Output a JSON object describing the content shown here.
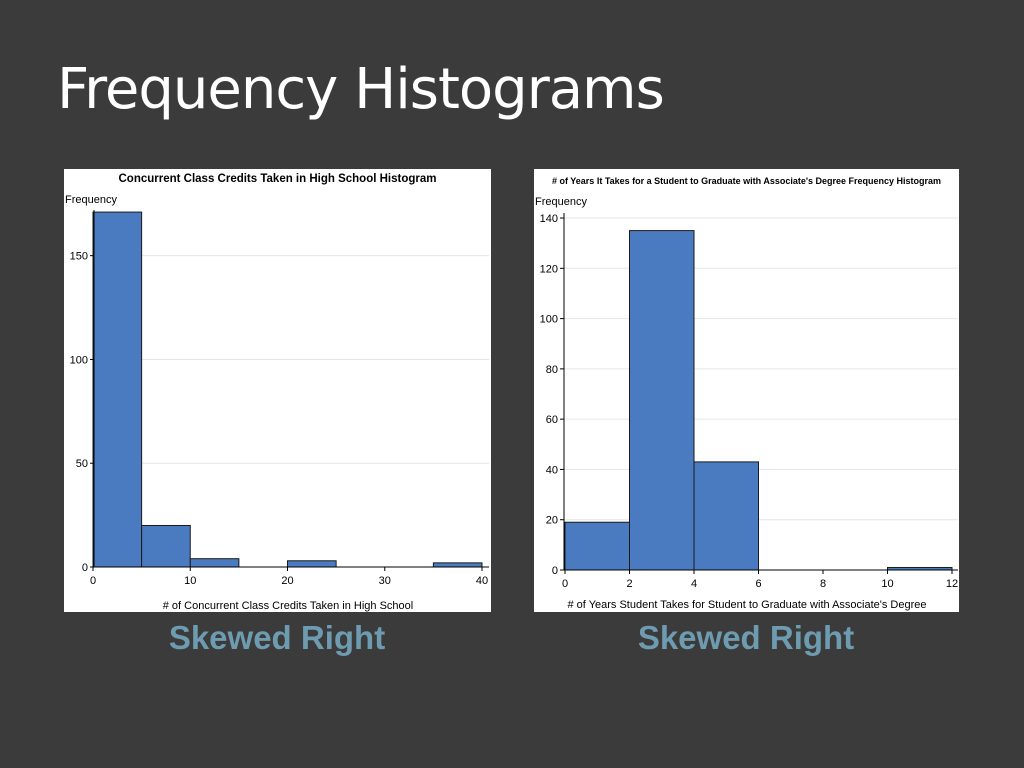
{
  "slide": {
    "title": "Frequency Histograms",
    "accent_color": "#6d9bb0",
    "background_color": "#3b3b3b"
  },
  "captions": {
    "left": "Skewed Right",
    "right": "Skewed Right"
  },
  "chart_data": [
    {
      "type": "bar",
      "title": "Concurrent Class Credits Taken in High School Histogram",
      "xlabel": "# of Concurrent Class Credits Taken in High School",
      "ylabel": "Frequency",
      "xlim": [
        0,
        40
      ],
      "ylim": [
        0,
        172
      ],
      "x_ticks": [
        0,
        10,
        20,
        30,
        40
      ],
      "y_ticks": [
        0,
        50,
        100,
        150
      ],
      "grid": true,
      "bar_color": "#4a7bc1",
      "bins": [
        {
          "start": 0,
          "end": 5,
          "count": 171
        },
        {
          "start": 5,
          "end": 10,
          "count": 20
        },
        {
          "start": 10,
          "end": 15,
          "count": 4
        },
        {
          "start": 20,
          "end": 25,
          "count": 3
        },
        {
          "start": 35,
          "end": 40,
          "count": 2
        }
      ]
    },
    {
      "type": "bar",
      "title": "# of Years It Takes for a Student to Graduate with Associate's Degree Frequency Histogram",
      "xlabel": "# of Years Student Takes for Student to Graduate with Associate's Degree",
      "ylabel": "Frequency",
      "xlim": [
        0,
        12
      ],
      "ylim": [
        0,
        142
      ],
      "x_ticks": [
        0,
        2,
        4,
        6,
        8,
        10,
        12
      ],
      "y_ticks": [
        0,
        20,
        40,
        60,
        80,
        100,
        120,
        140
      ],
      "grid": true,
      "bar_color": "#4a7bc1",
      "bins": [
        {
          "start": 0,
          "end": 2,
          "count": 19
        },
        {
          "start": 2,
          "end": 4,
          "count": 135
        },
        {
          "start": 4,
          "end": 6,
          "count": 43
        },
        {
          "start": 10,
          "end": 12,
          "count": 1
        }
      ]
    }
  ]
}
